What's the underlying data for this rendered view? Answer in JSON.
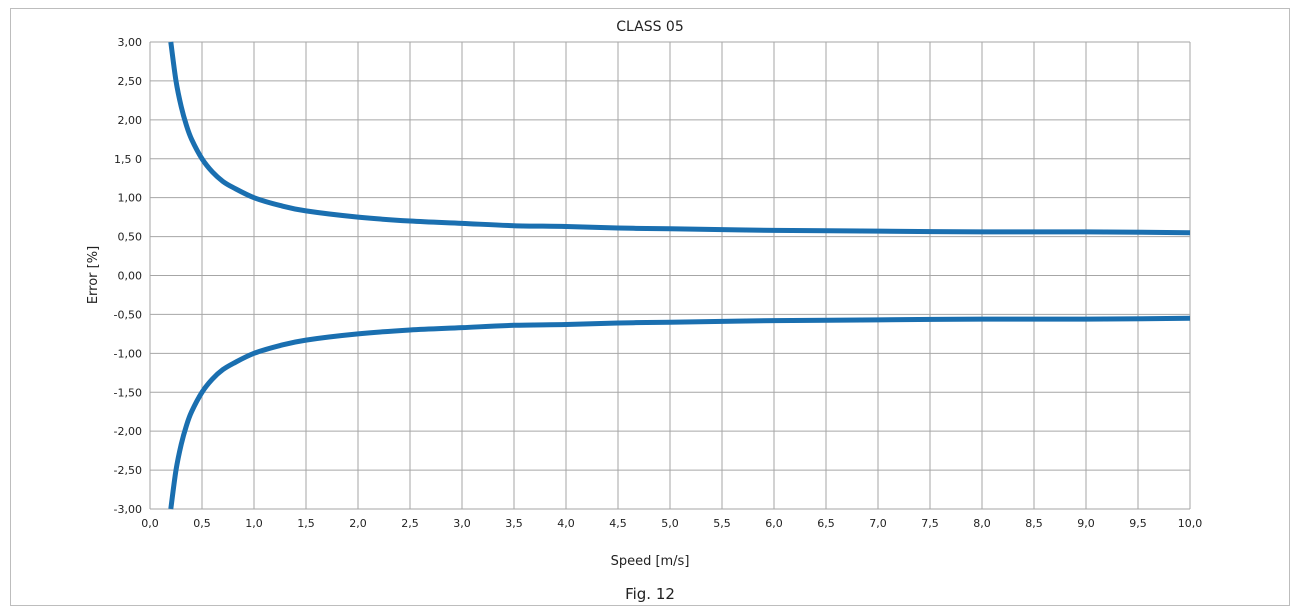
{
  "chart_data": {
    "type": "line",
    "title": "CLASS 05",
    "xlabel": "Speed [m/s]",
    "ylabel": "Error [%]",
    "caption": "Fig. 12",
    "xlim": [
      0.0,
      10.0
    ],
    "ylim": [
      -3.0,
      3.0
    ],
    "grid": true,
    "x_ticks": [
      "0,0",
      "0,5",
      "1,0",
      "1,5",
      "2,0",
      "2,5",
      "3,0",
      "3,5",
      "4,0",
      "4,5",
      "5,0",
      "5,5",
      "6,0",
      "6,5",
      "7,0",
      "7,5",
      "8,0",
      "8,5",
      "9,0",
      "9,5",
      "10,0"
    ],
    "y_ticks": [
      "3,00",
      "2,50",
      "2,00",
      "1,5 0",
      "1,00",
      "0,50",
      "0,00",
      "-0,50",
      "-1,00",
      "-1,50",
      "-2,00",
      "-2,50",
      "-3,00"
    ],
    "series": [
      {
        "color": "#1a6fb0",
        "x": [
          0.2,
          0.25,
          0.3,
          0.35,
          0.4,
          0.5,
          0.6,
          0.7,
          0.8,
          1.0,
          1.25,
          1.5,
          2.0,
          2.5,
          3.0,
          3.5,
          4.0,
          4.5,
          5.0,
          6.0,
          7.0,
          8.0,
          9.0,
          10.0
        ],
        "y": [
          3.0,
          2.5,
          2.17,
          1.93,
          1.75,
          1.5,
          1.33,
          1.21,
          1.13,
          1.0,
          0.9,
          0.83,
          0.75,
          0.7,
          0.67,
          0.64,
          0.63,
          0.61,
          0.6,
          0.58,
          0.57,
          0.56,
          0.56,
          0.55
        ]
      },
      {
        "color": "#1a6fb0",
        "x": [
          0.2,
          0.25,
          0.3,
          0.35,
          0.4,
          0.5,
          0.6,
          0.7,
          0.8,
          1.0,
          1.25,
          1.5,
          2.0,
          2.5,
          3.0,
          3.5,
          4.0,
          4.5,
          5.0,
          6.0,
          7.0,
          8.0,
          9.0,
          10.0
        ],
        "y": [
          -3.0,
          -2.5,
          -2.17,
          -1.93,
          -1.75,
          -1.5,
          -1.33,
          -1.21,
          -1.13,
          -1.0,
          -0.9,
          -0.83,
          -0.75,
          -0.7,
          -0.67,
          -0.64,
          -0.63,
          -0.61,
          -0.6,
          -0.58,
          -0.57,
          -0.56,
          -0.56,
          -0.55
        ]
      }
    ]
  }
}
